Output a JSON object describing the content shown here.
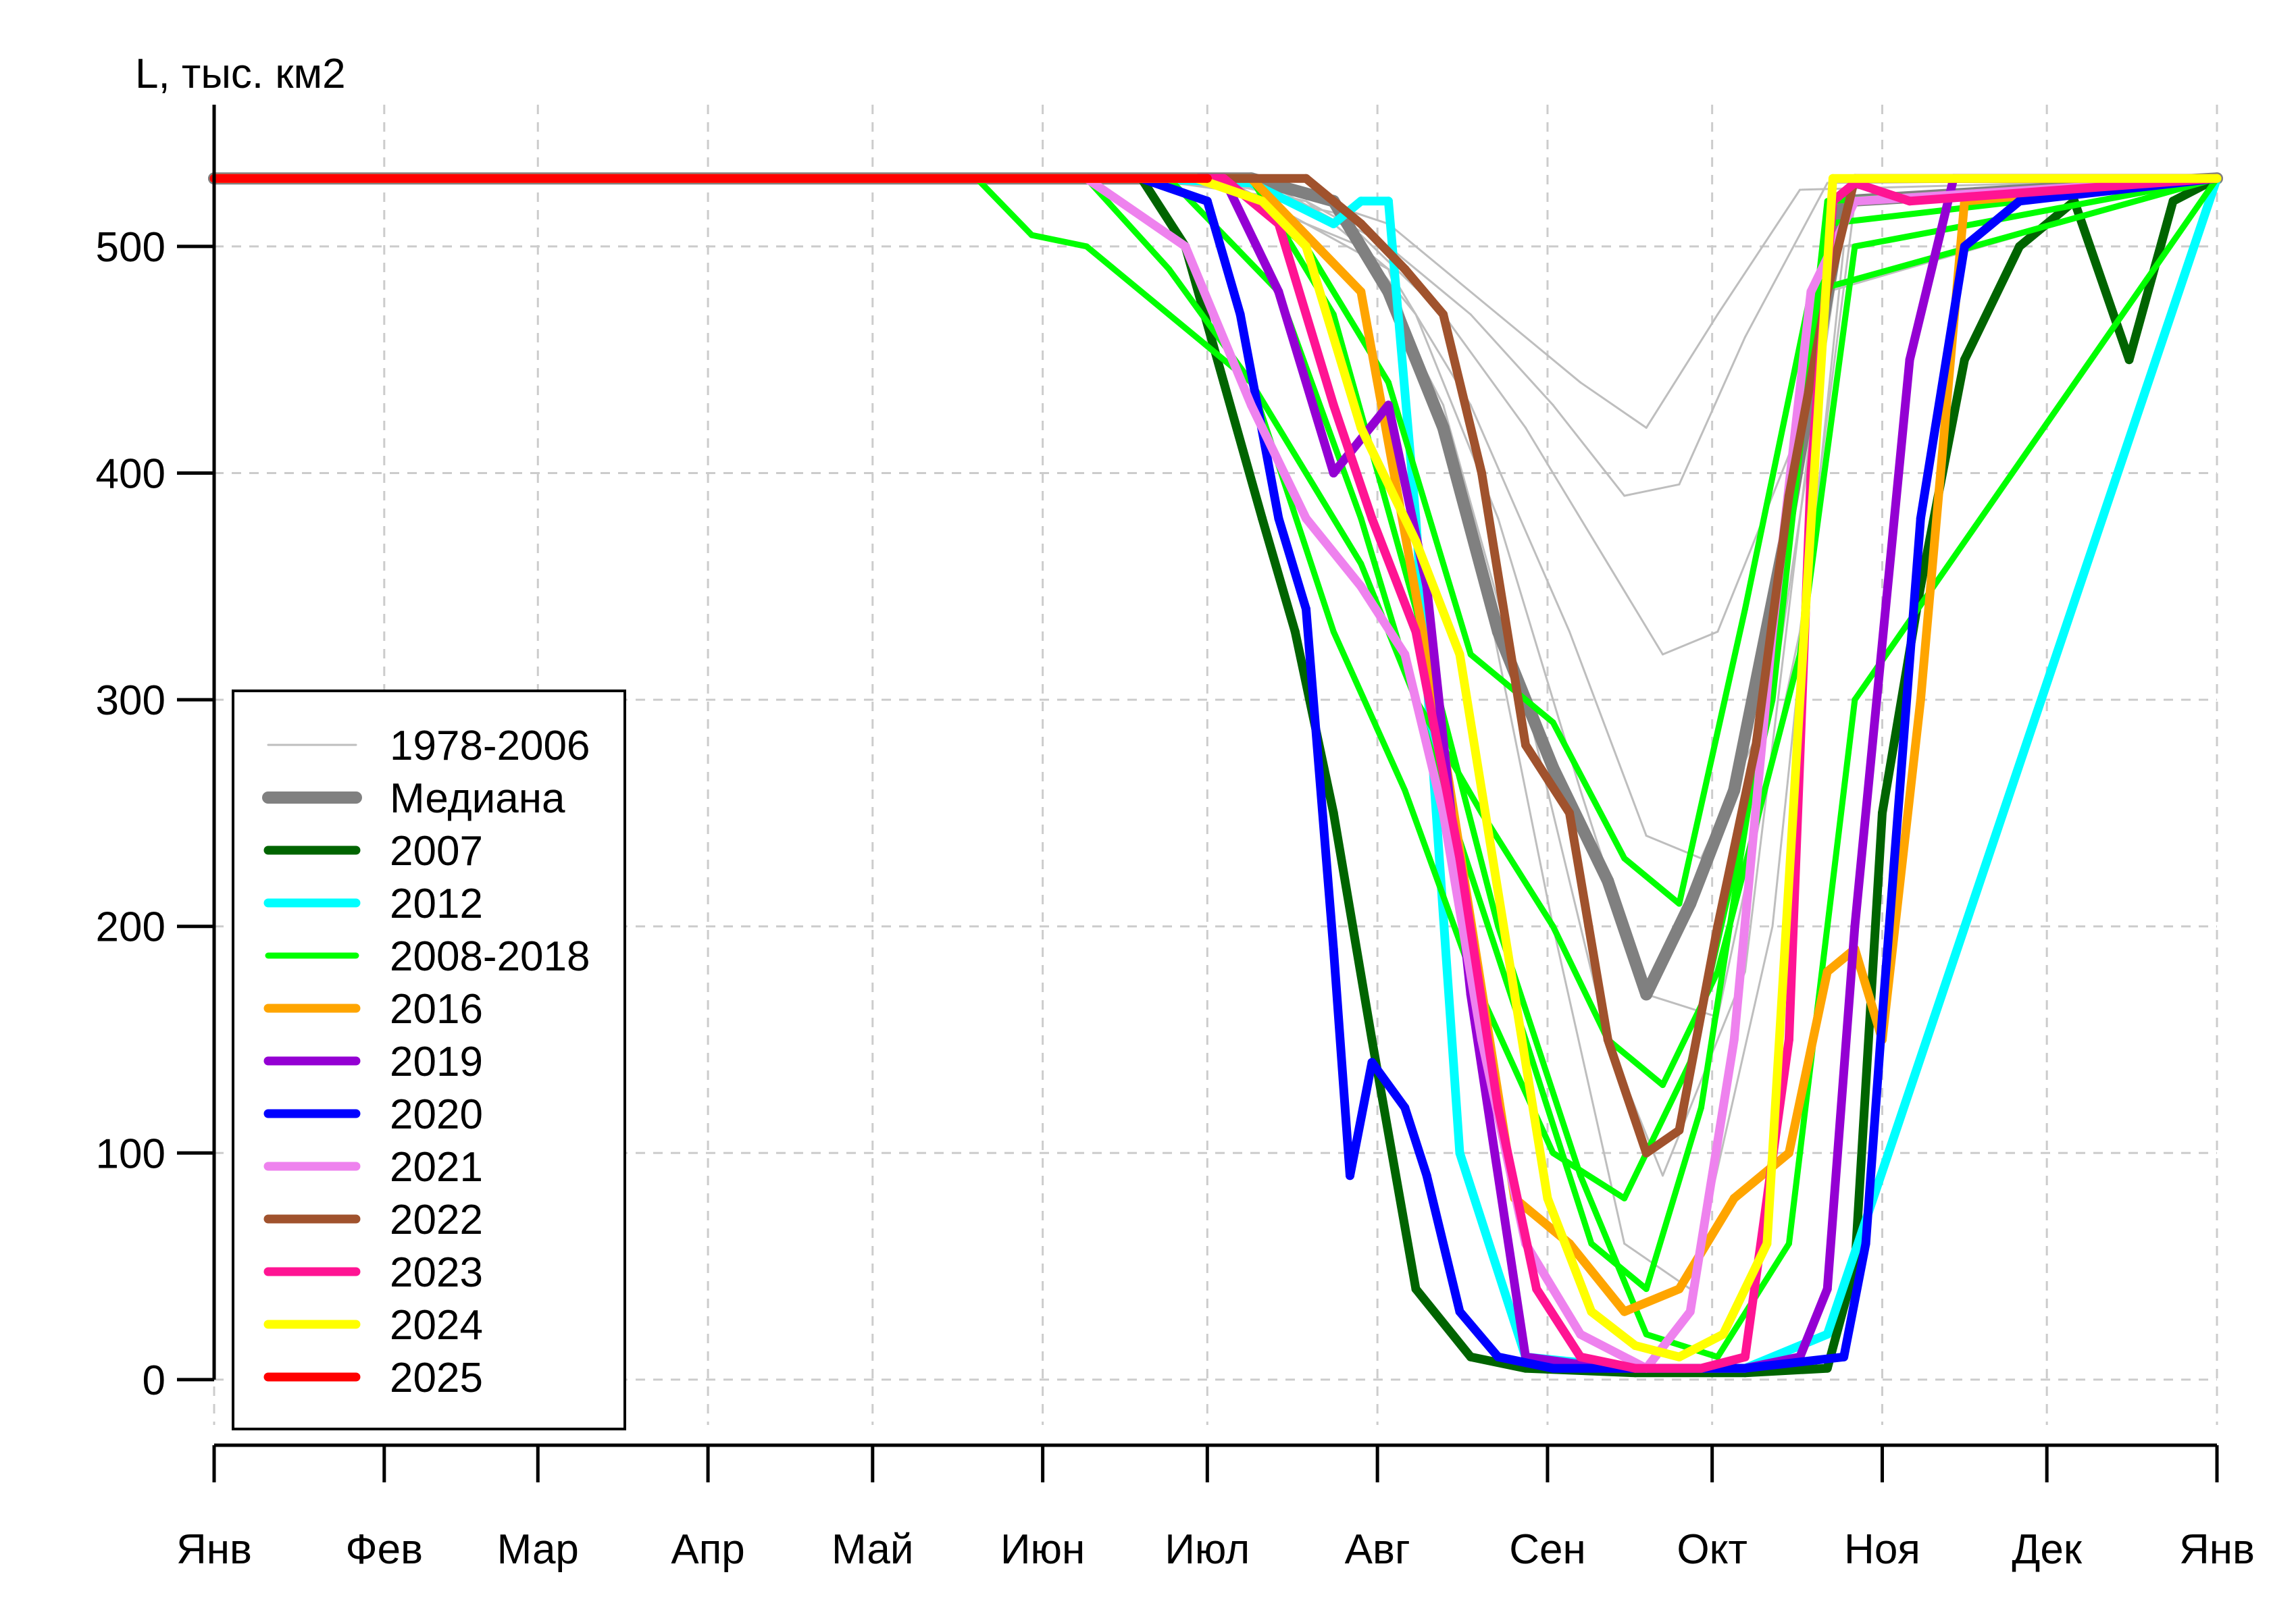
{
  "chart_data": {
    "type": "line",
    "ylabel": "L, тыс. км2",
    "yticks": [
      0,
      100,
      200,
      300,
      400,
      500
    ],
    "ylim": [
      -20,
      570
    ],
    "xlim": [
      1,
      366
    ],
    "xticks": [
      {
        "day": 1,
        "label": "Янв"
      },
      {
        "day": 32,
        "label": "Фев"
      },
      {
        "day": 60,
        "label": "Мар"
      },
      {
        "day": 91,
        "label": "Апр"
      },
      {
        "day": 121,
        "label": "Май"
      },
      {
        "day": 152,
        "label": "Июн"
      },
      {
        "day": 182,
        "label": "Июл"
      },
      {
        "day": 213,
        "label": "Авг"
      },
      {
        "day": 244,
        "label": "Сен"
      },
      {
        "day": 274,
        "label": "Окт"
      },
      {
        "day": 305,
        "label": "Ноя"
      },
      {
        "day": 335,
        "label": "Дек"
      },
      {
        "day": 366,
        "label": "Янв"
      }
    ],
    "grid": true,
    "legend_position": "bottom-left",
    "legend": [
      {
        "label": "1978-2006",
        "color": "#bebebe"
      },
      {
        "label": "Медиана",
        "color": "#808080"
      },
      {
        "label": "2007",
        "color": "#006400"
      },
      {
        "label": "2012",
        "color": "#00ffff"
      },
      {
        "label": "2008-2018",
        "color": "#00ff00"
      },
      {
        "label": "2016",
        "color": "#ffa500"
      },
      {
        "label": "2019",
        "color": "#9400d3"
      },
      {
        "label": "2020",
        "color": "#0000ff"
      },
      {
        "label": "2021",
        "color": "#ee82ee"
      },
      {
        "label": "2022",
        "color": "#a0522d"
      },
      {
        "label": "2023",
        "color": "#ff1493"
      },
      {
        "label": "2024",
        "color": "#ffff00"
      },
      {
        "label": "2025",
        "color": "#ff0000"
      }
    ],
    "series": [
      {
        "name": "1978-2006",
        "color": "#bebebe",
        "x": [
          1,
          150,
          185,
          200,
          215,
          230,
          245,
          258,
          268,
          280,
          295,
          366
        ],
        "y": [
          530,
          530,
          528,
          520,
          500,
          470,
          430,
          390,
          395,
          460,
          528,
          530
        ]
      },
      {
        "name": "1978-2006",
        "color": "#bebebe",
        "x": [
          1,
          160,
          195,
          210,
          225,
          240,
          255,
          265,
          275,
          290,
          300,
          366
        ],
        "y": [
          530,
          530,
          525,
          505,
          470,
          420,
          360,
          320,
          330,
          420,
          528,
          530
        ]
      },
      {
        "name": "1978-2006",
        "color": "#bebebe",
        "x": [
          1,
          170,
          200,
          215,
          230,
          248,
          262,
          272,
          285,
          298,
          366
        ],
        "y": [
          530,
          530,
          520,
          490,
          430,
          330,
          240,
          230,
          300,
          510,
          530
        ]
      },
      {
        "name": "1978-2006",
        "color": "#bebebe",
        "x": [
          1,
          175,
          205,
          220,
          235,
          250,
          262,
          275,
          290,
          300,
          366
        ],
        "y": [
          530,
          530,
          515,
          470,
          380,
          260,
          170,
          160,
          330,
          520,
          530
        ]
      },
      {
        "name": "1978-2006",
        "color": "#bebebe",
        "x": [
          1,
          180,
          210,
          225,
          240,
          255,
          265,
          280,
          295,
          366
        ],
        "y": [
          530,
          530,
          500,
          430,
          300,
          150,
          90,
          180,
          480,
          530
        ]
      },
      {
        "name": "1978-2006",
        "color": "#bebebe",
        "x": [
          1,
          185,
          215,
          230,
          245,
          258,
          270,
          285,
          298,
          366
        ],
        "y": [
          530,
          530,
          490,
          380,
          200,
          60,
          40,
          200,
          500,
          530
        ]
      },
      {
        "name": "1978-2006",
        "color": "#bebebe",
        "x": [
          1,
          190,
          215,
          235,
          250,
          262,
          275,
          290,
          366
        ],
        "y": [
          530,
          530,
          510,
          470,
          440,
          420,
          470,
          525,
          530
        ]
      },
      {
        "name": "Медиана",
        "color": "#808080",
        "x": [
          1,
          190,
          205,
          215,
          225,
          235,
          245,
          255,
          262,
          270,
          278,
          288,
          298,
          366
        ],
        "y": [
          530,
          530,
          520,
          480,
          420,
          330,
          270,
          220,
          170,
          210,
          260,
          380,
          520,
          530
        ]
      },
      {
        "name": "2007",
        "color": "#006400",
        "x": [
          1,
          170,
          178,
          185,
          192,
          198,
          205,
          212,
          220,
          230,
          240,
          260,
          280,
          295,
          300,
          305,
          312,
          320,
          330,
          340,
          350,
          358,
          366
        ],
        "y": [
          530,
          530,
          500,
          440,
          380,
          330,
          250,
          150,
          40,
          10,
          5,
          3,
          3,
          5,
          50,
          250,
          350,
          450,
          500,
          520,
          450,
          520,
          530
        ]
      },
      {
        "name": "2012",
        "color": "#00ffff",
        "x": [
          1,
          170,
          190,
          205,
          210,
          215,
          220,
          228,
          240,
          260,
          280,
          295,
          366
        ],
        "y": [
          530,
          530,
          528,
          510,
          520,
          520,
          380,
          100,
          10,
          5,
          5,
          20,
          530
        ]
      },
      {
        "name": "2008-2018",
        "color": "#00ff00",
        "x": [
          1,
          140,
          150,
          160,
          175,
          190,
          200,
          210,
          220,
          232,
          245,
          255,
          265,
          275,
          290,
          300,
          366
        ],
        "y": [
          530,
          530,
          505,
          500,
          470,
          440,
          400,
          360,
          300,
          250,
          200,
          150,
          130,
          180,
          320,
          500,
          530
        ]
      },
      {
        "name": "2008-2018",
        "color": "#00ff00",
        "x": [
          1,
          160,
          175,
          190,
          205,
          218,
          230,
          245,
          258,
          270,
          285,
          295,
          366
        ],
        "y": [
          530,
          530,
          490,
          440,
          330,
          260,
          180,
          100,
          80,
          140,
          300,
          520,
          530
        ]
      },
      {
        "name": "2008-2018",
        "color": "#00ff00",
        "x": [
          1,
          175,
          195,
          210,
          225,
          240,
          252,
          262,
          272,
          285,
          295,
          366
        ],
        "y": [
          530,
          530,
          480,
          380,
          260,
          150,
          60,
          40,
          120,
          320,
          510,
          530
        ]
      },
      {
        "name": "2008-2018",
        "color": "#00ff00",
        "x": [
          1,
          185,
          200,
          215,
          230,
          245,
          258,
          268,
          280,
          292,
          366
        ],
        "y": [
          530,
          530,
          500,
          440,
          320,
          290,
          230,
          210,
          340,
          480,
          530
        ]
      },
      {
        "name": "2008-2018",
        "color": "#00ff00",
        "x": [
          1,
          190,
          205,
          220,
          235,
          250,
          262,
          275,
          288,
          300,
          366
        ],
        "y": [
          530,
          530,
          470,
          340,
          200,
          90,
          20,
          10,
          60,
          300,
          530
        ]
      },
      {
        "name": "2016",
        "color": "#ffa500",
        "x": [
          1,
          190,
          210,
          225,
          238,
          248,
          258,
          268,
          278,
          288,
          295,
          300,
          305,
          312,
          320,
          366
        ],
        "y": [
          530,
          530,
          480,
          280,
          80,
          60,
          30,
          40,
          80,
          100,
          180,
          190,
          150,
          300,
          520,
          530
        ]
      },
      {
        "name": "2019",
        "color": "#9400d3",
        "x": [
          1,
          185,
          195,
          205,
          215,
          222,
          230,
          240,
          255,
          280,
          290,
          295,
          300,
          310,
          318,
          366
        ],
        "y": [
          530,
          530,
          480,
          400,
          430,
          350,
          170,
          10,
          5,
          5,
          10,
          40,
          200,
          450,
          530,
          530
        ]
      },
      {
        "name": "2020",
        "color": "#0000ff",
        "x": [
          1,
          170,
          182,
          188,
          195,
          200,
          205,
          208,
          212,
          218,
          222,
          228,
          235,
          245,
          260,
          280,
          298,
          302,
          305,
          312,
          320,
          330,
          366
        ],
        "y": [
          530,
          530,
          520,
          470,
          380,
          340,
          190,
          90,
          140,
          120,
          90,
          30,
          10,
          5,
          5,
          5,
          10,
          60,
          160,
          380,
          500,
          520,
          530
        ]
      },
      {
        "name": "2021",
        "color": "#ee82ee",
        "x": [
          1,
          160,
          178,
          190,
          200,
          210,
          218,
          225,
          232,
          240,
          250,
          262,
          270,
          278,
          285,
          292,
          300,
          366
        ],
        "y": [
          530,
          530,
          500,
          430,
          380,
          350,
          320,
          250,
          150,
          60,
          20,
          5,
          30,
          150,
          330,
          480,
          520,
          530
        ]
      },
      {
        "name": "2022",
        "color": "#a0522d",
        "x": [
          1,
          185,
          200,
          210,
          218,
          225,
          232,
          240,
          248,
          255,
          262,
          268,
          275,
          282,
          288,
          295,
          300,
          366
        ],
        "y": [
          530,
          530,
          530,
          510,
          490,
          470,
          400,
          280,
          250,
          150,
          100,
          110,
          200,
          280,
          390,
          480,
          530,
          530
        ]
      },
      {
        "name": "2023",
        "color": "#ff1493",
        "x": [
          1,
          185,
          195,
          205,
          212,
          220,
          228,
          235,
          242,
          250,
          260,
          272,
          280,
          288,
          292,
          296,
          300,
          310,
          366
        ],
        "y": [
          530,
          530,
          510,
          430,
          380,
          330,
          230,
          120,
          40,
          10,
          5,
          5,
          10,
          150,
          400,
          520,
          528,
          520,
          530
        ]
      },
      {
        "name": "2024",
        "color": "#ffff00",
        "x": [
          1,
          180,
          192,
          200,
          210,
          220,
          228,
          236,
          244,
          252,
          260,
          268,
          276,
          284,
          290,
          296,
          366
        ],
        "y": [
          530,
          530,
          520,
          500,
          420,
          370,
          320,
          200,
          80,
          30,
          15,
          10,
          20,
          60,
          300,
          530,
          530
        ]
      },
      {
        "name": "2025",
        "color": "#ff0000",
        "x": [
          1,
          182
        ],
        "y": [
          530,
          530
        ]
      }
    ]
  }
}
